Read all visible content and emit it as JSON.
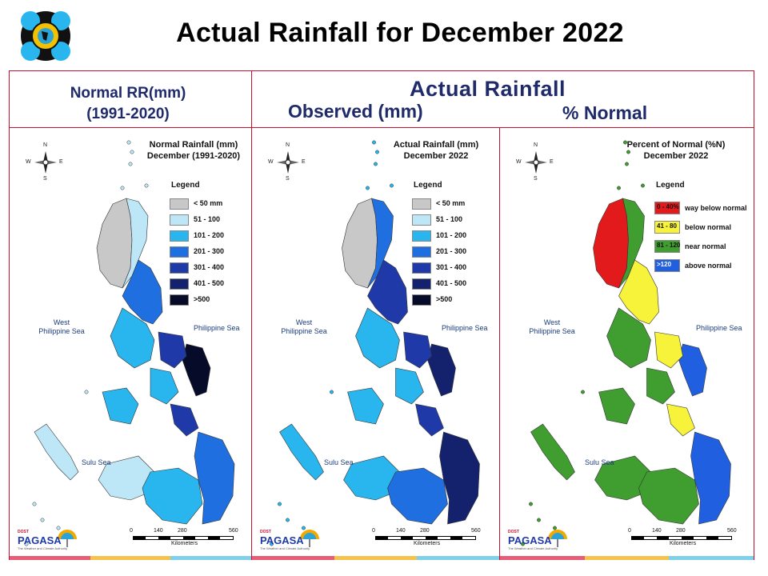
{
  "title": "Actual Rainfall for December 2022",
  "headers": {
    "normal_line1": "Normal RR(mm)",
    "normal_line2": "(1991-2020)",
    "actual": "Actual Rainfall",
    "observed": "Observed (mm)",
    "percent": "% Normal"
  },
  "panels": [
    {
      "title_line1": "Normal Rainfall (mm)",
      "title_line2": "December (1991-2020)",
      "legend_title": "Legend",
      "legend": [
        {
          "label": "< 50 mm",
          "color": "#c8c8c8"
        },
        {
          "label": "51 - 100",
          "color": "#bde6f7"
        },
        {
          "label": "101 - 200",
          "color": "#29b6ef"
        },
        {
          "label": "201 - 300",
          "color": "#1f6fe0"
        },
        {
          "label": "301 - 400",
          "color": "#1f3aa8"
        },
        {
          "label": "401 - 500",
          "color": "#14226e"
        },
        {
          "label": ">500",
          "color": "#060b2a"
        }
      ]
    },
    {
      "title_line1": "Actual Rainfall (mm)",
      "title_line2": "December 2022",
      "legend_title": "Legend",
      "legend": [
        {
          "label": "< 50 mm",
          "color": "#c8c8c8"
        },
        {
          "label": "51 - 100",
          "color": "#bde6f7"
        },
        {
          "label": "101 - 200",
          "color": "#29b6ef"
        },
        {
          "label": "201 - 300",
          "color": "#1f6fe0"
        },
        {
          "label": "301 - 400",
          "color": "#1f3aa8"
        },
        {
          "label": "401 - 500",
          "color": "#14226e"
        },
        {
          "label": ">500",
          "color": "#060b2a"
        }
      ]
    },
    {
      "title_line1": "Percent of Normal (%N)",
      "title_line2": "December 2022",
      "legend_title": "Legend",
      "legend": [
        {
          "label": "way below normal",
          "range": "0 - 40%",
          "color": "#e31a1c"
        },
        {
          "label": "below normal",
          "range": "41 - 80",
          "color": "#f7f23a"
        },
        {
          "label": "near normal",
          "range": "81 - 120",
          "color": "#3f9e2f"
        },
        {
          "label": "above normal",
          "range": ">120",
          "color": "#1f5fe0"
        }
      ]
    }
  ],
  "seas": {
    "west_line1": "West",
    "west_line2": "Philippine Sea",
    "philippine_sea": "Philippine Sea",
    "sulu_sea": "Sulu Sea"
  },
  "compass": {
    "n": "N",
    "s": "S",
    "e": "E",
    "w": "W"
  },
  "scale": {
    "ticks": [
      "0",
      "140",
      "280",
      "560"
    ],
    "unit": "Kilometers"
  },
  "pagasa": {
    "dost": "DOST",
    "pagasa": "PAGASA",
    "tag": "The Weather and Climate Authority"
  },
  "map_colors": {
    "p1": {
      "north_west": "#c8c8c8",
      "north_east": "#bde6f7",
      "east_coast": "#1f6fe0",
      "samar": "#060b2a",
      "visayas": "#29b6ef",
      "visayas_east": "#1f3aa8",
      "mindanao_west": "#bde6f7",
      "mindanao_east": "#1f6fe0",
      "mindanao_center": "#29b6ef",
      "palawan": "#bde6f7"
    },
    "p2": {
      "north_west": "#c8c8c8",
      "north_east": "#1f6fe0",
      "east_coast": "#1f3aa8",
      "samar": "#14226e",
      "visayas": "#29b6ef",
      "visayas_east": "#1f3aa8",
      "mindanao_west": "#29b6ef",
      "mindanao_east": "#14226e",
      "mindanao_center": "#1f6fe0",
      "palawan": "#29b6ef"
    },
    "p3": {
      "north_west": "#e31a1c",
      "north_east": "#3f9e2f",
      "east_coast": "#f7f23a",
      "samar": "#1f5fe0",
      "visayas": "#3f9e2f",
      "visayas_east": "#f7f23a",
      "mindanao_west": "#3f9e2f",
      "mindanao_east": "#1f5fe0",
      "mindanao_center": "#3f9e2f",
      "palawan": "#3f9e2f"
    }
  }
}
